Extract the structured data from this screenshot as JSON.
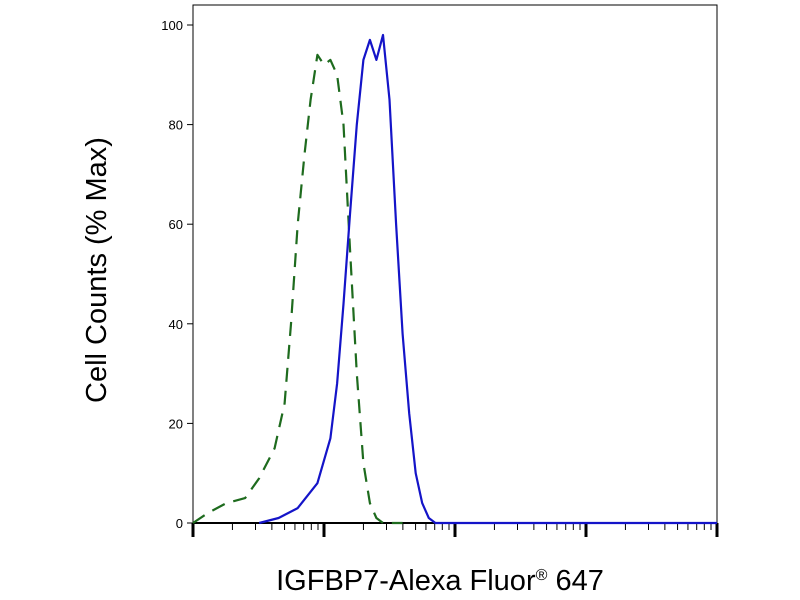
{
  "chart_data": {
    "type": "line",
    "xlabel": "IGFBP7-Alexa Fluor",
    "xlabel_superscript": "®",
    "xlabel_suffix": " 647",
    "ylabel": "Cell Counts (% Max)",
    "ylim": [
      0,
      100
    ],
    "yticks": [
      0,
      20,
      40,
      60,
      80,
      100
    ],
    "xscale": "log",
    "xlim": [
      1,
      10000
    ],
    "grid": false,
    "series": [
      {
        "style": "dashed",
        "color": "#1e6b1e",
        "x": [
          1.0,
          1.3,
          1.8,
          2.5,
          3.2,
          4.2,
          5.0,
          5.6,
          6.3,
          7.1,
          7.9,
          8.9,
          10.0,
          11.2,
          12.6,
          14.1,
          15.8,
          17.8,
          20.0,
          22.4,
          25.1,
          28.2,
          31.6,
          35.5,
          39.8
        ],
        "y": [
          0,
          2,
          4,
          5,
          9,
          15,
          24,
          40,
          60,
          74,
          85,
          94,
          92,
          93,
          90,
          80,
          55,
          30,
          12,
          4,
          1,
          0,
          0,
          0,
          0
        ]
      },
      {
        "style": "solid",
        "color": "#1414c8",
        "x": [
          3.2,
          4.5,
          6.3,
          8.9,
          11.2,
          12.6,
          14.1,
          15.8,
          17.8,
          20.0,
          22.4,
          25.1,
          28.2,
          31.6,
          35.5,
          39.8,
          44.7,
          50.1,
          56.2,
          63.1,
          70.8,
          79.4,
          89.1,
          100,
          158,
          251,
          501,
          1000,
          2000,
          5000,
          10000
        ],
        "y": [
          0,
          1,
          3,
          8,
          17,
          28,
          44,
          62,
          80,
          93,
          97,
          93,
          98,
          85,
          60,
          38,
          22,
          10,
          4,
          1,
          0,
          0,
          0,
          0,
          0,
          0,
          0,
          0,
          0,
          0,
          0
        ]
      }
    ]
  }
}
